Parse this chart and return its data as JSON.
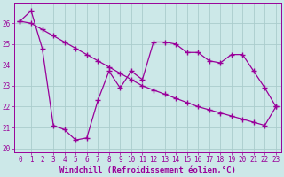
{
  "line1_x": [
    0,
    1,
    2,
    3,
    4,
    5,
    6,
    7,
    8,
    9,
    10,
    11,
    12,
    13,
    14,
    15,
    16,
    17,
    18,
    19,
    20,
    21,
    22,
    23
  ],
  "line1_y": [
    26.1,
    26.0,
    25.7,
    25.4,
    25.1,
    24.8,
    24.5,
    24.2,
    23.9,
    23.6,
    23.3,
    23.0,
    22.8,
    22.6,
    22.4,
    22.2,
    22.0,
    21.85,
    21.7,
    21.55,
    21.4,
    21.25,
    21.1,
    22.0
  ],
  "line2_x": [
    0,
    1,
    2,
    3,
    4,
    5,
    6,
    7,
    8,
    9,
    10,
    11,
    12,
    13,
    14,
    15,
    16,
    17,
    18,
    19,
    20,
    21,
    22,
    23
  ],
  "line2_y": [
    26.1,
    26.6,
    24.8,
    21.1,
    20.9,
    20.4,
    20.5,
    22.3,
    23.7,
    22.9,
    23.7,
    23.3,
    25.1,
    25.1,
    25.0,
    24.6,
    24.6,
    24.2,
    24.1,
    24.5,
    24.5,
    23.7,
    22.9,
    22.0
  ],
  "color": "#990099",
  "bg_color": "#cce8e8",
  "grid_color": "#aacccc",
  "xlabel": "Windchill (Refroidissement éolien,°C)",
  "xlim": [
    -0.5,
    23.5
  ],
  "ylim": [
    19.8,
    27.0
  ],
  "yticks": [
    20,
    21,
    22,
    23,
    24,
    25,
    26
  ],
  "xticks": [
    0,
    1,
    2,
    3,
    4,
    5,
    6,
    7,
    8,
    9,
    10,
    11,
    12,
    13,
    14,
    15,
    16,
    17,
    18,
    19,
    20,
    21,
    22,
    23
  ],
  "marker": "+",
  "markersize": 4,
  "linewidth": 0.9,
  "xlabel_fontsize": 6.5,
  "tick_fontsize": 5.5
}
